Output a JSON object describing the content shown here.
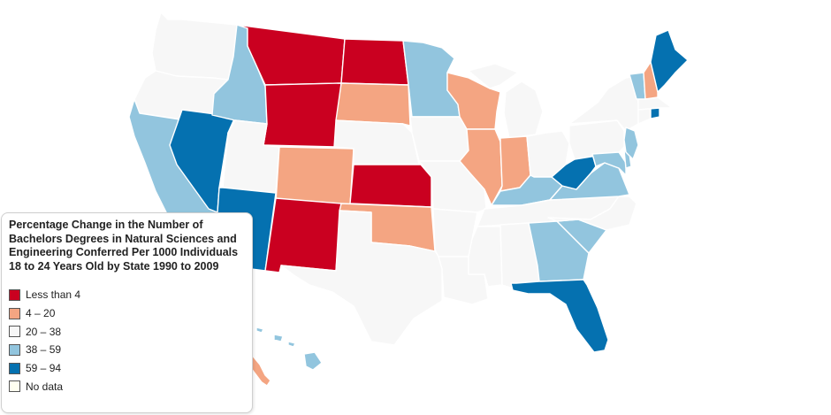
{
  "legend": {
    "title": "Percentage Change in the Number of Bachelors Degrees in Natural Sciences and Engineering Conferred Per 1000 Individuals 18 to 24 Years Old by State 1990 to 2009",
    "items": [
      {
        "label": "Less than 4",
        "color": "#ca0020"
      },
      {
        "label": "4 – 20",
        "color": "#f4a582"
      },
      {
        "label": "20 – 38",
        "color": "#f7f7f7"
      },
      {
        "label": "38 – 59",
        "color": "#92c5de"
      },
      {
        "label": "59 – 94",
        "color": "#0571b0"
      },
      {
        "label": "No data",
        "color": "#fffff0"
      }
    ]
  },
  "map": {
    "states": [
      {
        "name": "Washington",
        "class": 2
      },
      {
        "name": "Oregon",
        "class": 2
      },
      {
        "name": "California",
        "class": 3
      },
      {
        "name": "Nevada",
        "class": 4
      },
      {
        "name": "Idaho",
        "class": 3
      },
      {
        "name": "Montana",
        "class": 0
      },
      {
        "name": "Wyoming",
        "class": 0
      },
      {
        "name": "Utah",
        "class": 2
      },
      {
        "name": "Arizona",
        "class": 4
      },
      {
        "name": "Colorado",
        "class": 1
      },
      {
        "name": "New Mexico",
        "class": 0
      },
      {
        "name": "North Dakota",
        "class": 0
      },
      {
        "name": "South Dakota",
        "class": 1
      },
      {
        "name": "Nebraska",
        "class": 2
      },
      {
        "name": "Kansas",
        "class": 0
      },
      {
        "name": "Oklahoma",
        "class": 1
      },
      {
        "name": "Texas",
        "class": 2
      },
      {
        "name": "Minnesota",
        "class": 3
      },
      {
        "name": "Iowa",
        "class": 2
      },
      {
        "name": "Missouri",
        "class": 2
      },
      {
        "name": "Arkansas",
        "class": 2
      },
      {
        "name": "Louisiana",
        "class": 2
      },
      {
        "name": "Wisconsin",
        "class": 1
      },
      {
        "name": "Illinois",
        "class": 1
      },
      {
        "name": "Michigan",
        "class": 2
      },
      {
        "name": "Indiana",
        "class": 1
      },
      {
        "name": "Ohio",
        "class": 2
      },
      {
        "name": "Kentucky",
        "class": 3
      },
      {
        "name": "Tennessee",
        "class": 2
      },
      {
        "name": "Mississippi",
        "class": 2
      },
      {
        "name": "Alabama",
        "class": 2
      },
      {
        "name": "Georgia",
        "class": 3
      },
      {
        "name": "Florida",
        "class": 4
      },
      {
        "name": "South Carolina",
        "class": 3
      },
      {
        "name": "North Carolina",
        "class": 2
      },
      {
        "name": "Virginia",
        "class": 3
      },
      {
        "name": "West Virginia",
        "class": 4
      },
      {
        "name": "Pennsylvania",
        "class": 2
      },
      {
        "name": "New York",
        "class": 2
      },
      {
        "name": "Maryland",
        "class": 3
      },
      {
        "name": "Delaware",
        "class": 3
      },
      {
        "name": "New Jersey",
        "class": 3
      },
      {
        "name": "Connecticut",
        "class": 2
      },
      {
        "name": "Rhode Island",
        "class": 4
      },
      {
        "name": "Massachusetts",
        "class": 2
      },
      {
        "name": "Vermont",
        "class": 3
      },
      {
        "name": "New Hampshire",
        "class": 1
      },
      {
        "name": "Maine",
        "class": 4
      },
      {
        "name": "Hawaii",
        "class": 3
      },
      {
        "name": "Alaska",
        "class": 1
      }
    ]
  }
}
